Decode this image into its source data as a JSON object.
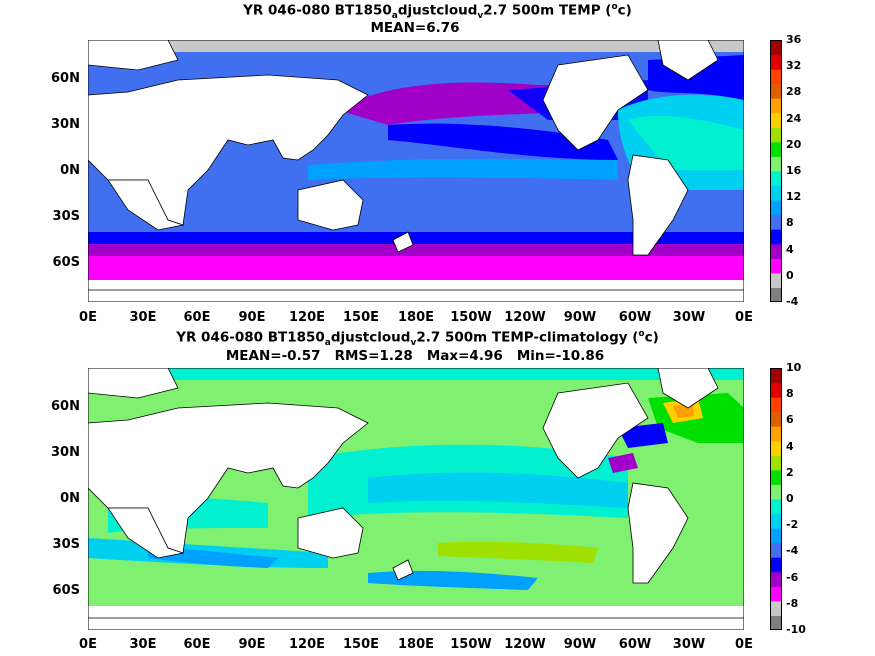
{
  "panel1": {
    "title_a": "YR 046-080 BT1850",
    "title_sub": "a",
    "title_b": "djustcloud",
    "title_sub2": "v",
    "title_c": "2.7 500m TEMP (",
    "title_sup": "o",
    "title_d": "c)",
    "stats": "MEAN=6.76",
    "colorbar_labels": [
      "36",
      "32",
      "28",
      "24",
      "20",
      "16",
      "12",
      "8",
      "4",
      "0",
      "-4"
    ]
  },
  "panel2": {
    "title_a": "YR 046-080 BT1850",
    "title_sub": "a",
    "title_b": "djustcloud",
    "title_sub2": "v",
    "title_c": "2.7 500m TEMP-climatology (",
    "title_sup": "o",
    "title_d": "c)",
    "stats": "MEAN=-0.57   RMS=1.28   Max=4.96   Min=-10.86",
    "colorbar_labels": [
      "10",
      "8",
      "6",
      "4",
      "2",
      "0",
      "-2",
      "-4",
      "-6",
      "-8",
      "-10"
    ]
  },
  "lat_labels": [
    "60N",
    "30N",
    "0N",
    "30S",
    "60S"
  ],
  "lon_labels": [
    "0E",
    "30E",
    "60E",
    "90E",
    "120E",
    "150E",
    "180E",
    "150W",
    "120W",
    "90W",
    "60W",
    "30W",
    "0E"
  ],
  "colors": {
    "panel1_bar": [
      "#808080",
      "#c8c8c8",
      "#ff00ff",
      "#a000c8",
      "#0000ff",
      "#4070f0",
      "#00a0ff",
      "#00d0f0",
      "#00f0d0",
      "#80f070",
      "#00e000",
      "#a0e000",
      "#ffd000",
      "#ffa000",
      "#e06000",
      "#ff4000",
      "#e00000",
      "#a00000"
    ],
    "panel2_bar": [
      "#808080",
      "#c8c8c8",
      "#ff00ff",
      "#a000c8",
      "#0000ff",
      "#4070f0",
      "#00a0ff",
      "#00d0f0",
      "#00f0d0",
      "#80f070",
      "#00e000",
      "#a0e000",
      "#ffd000",
      "#ffa000",
      "#e06000",
      "#ff4000",
      "#e00000",
      "#a00000"
    ],
    "land": "#ffffff",
    "coast": "#000000"
  }
}
